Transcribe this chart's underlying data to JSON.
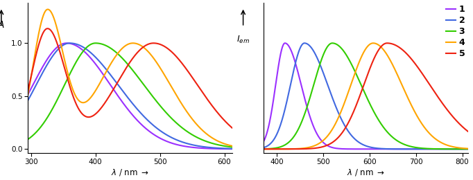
{
  "colors": {
    "1": "#9B30FF",
    "2": "#4169E1",
    "3": "#32CD00",
    "4": "#FFA500",
    "5": "#EE2211"
  },
  "abs_xlim": [
    295,
    612
  ],
  "abs_ylim": [
    -0.04,
    1.38
  ],
  "em_xlim": [
    372,
    812
  ],
  "em_ylim": [
    -0.04,
    1.38
  ],
  "abs_xticks": [
    300,
    400,
    500,
    600
  ],
  "em_xticks": [
    400,
    500,
    600,
    700,
    800
  ],
  "abs_yticks": [
    0.0,
    0.5,
    1.0
  ],
  "figure_size": [
    6.82,
    2.6
  ],
  "dpi": 100
}
